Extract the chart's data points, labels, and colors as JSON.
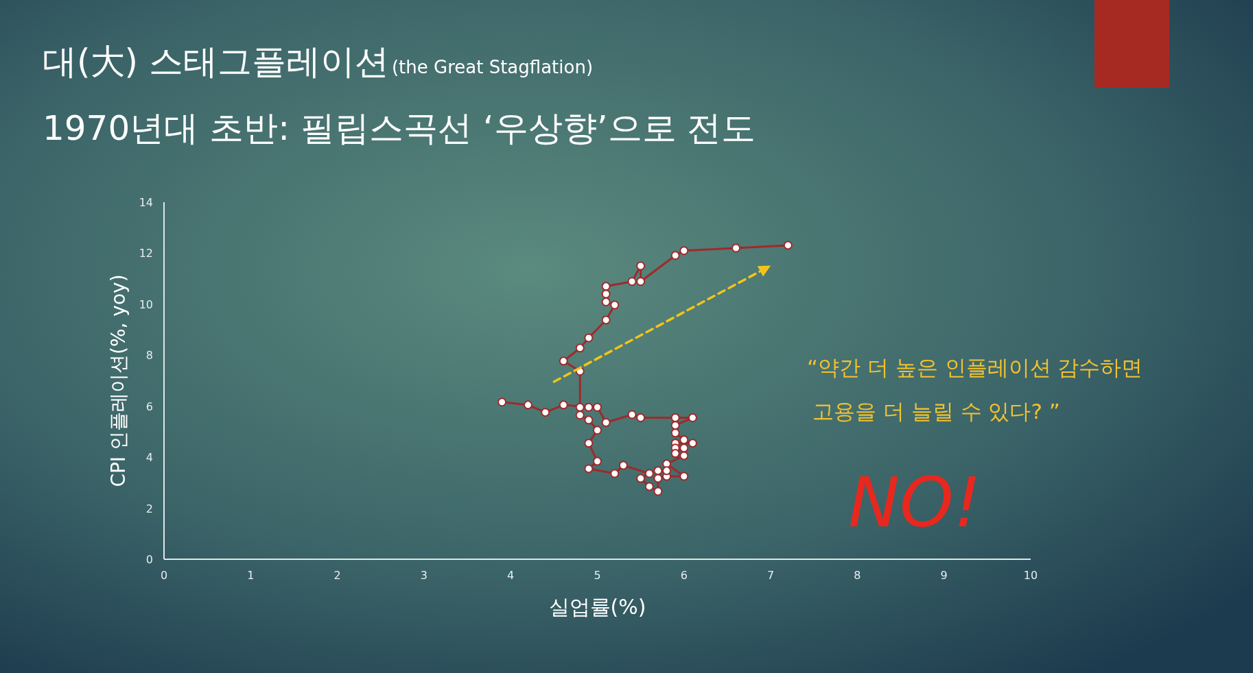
{
  "chart_data": {
    "type": "line",
    "title": "대(大) 스태그플레이션",
    "subtitle": "(the Great Stagflation)",
    "xlabel": "실업률(%)",
    "ylabel": "CPI 인플레이션(%, yoy)",
    "annotations": [
      "1970년대 초반: 필립스곡선 ‘우상향’으로 전도",
      "“약간 더 높은 인플레이션 감수하면\n고용을 더 늘릴 수 있다? ”",
      "NO!"
    ],
    "xlim": [
      0,
      10
    ],
    "xticks": [
      0,
      1,
      2,
      3,
      4,
      5,
      6,
      7,
      8,
      9,
      10
    ],
    "ylim": [
      0,
      14
    ],
    "yticks": [
      0,
      2,
      4,
      6,
      8,
      10,
      12,
      14
    ],
    "grid": false,
    "series": [
      {
        "color": "#9e2a2b",
        "marker": "circle",
        "line_style": "solid",
        "x": [
          3.9,
          4.2,
          4.4,
          4.61,
          4.9,
          5.0,
          5.1,
          5.4,
          5.5,
          5.9,
          6.1,
          5.9,
          5.9,
          6.0,
          6.1,
          5.9,
          5.9,
          6.0,
          5.9,
          6.0,
          5.8,
          6.0,
          5.8,
          5.8,
          5.7,
          5.7,
          5.7,
          5.6,
          5.5,
          5.6,
          5.3,
          5.2,
          4.9,
          5.0,
          4.9,
          5.0,
          4.9,
          4.8,
          4.8,
          4.8,
          4.61,
          4.8,
          4.9,
          5.1,
          5.2,
          5.1,
          5.1,
          5.1,
          5.4,
          5.5,
          5.5,
          5.9,
          6.0,
          6.6,
          7.2
        ],
        "values": [
          6.16,
          6.05,
          5.76,
          6.05,
          5.96,
          5.96,
          5.36,
          5.67,
          5.55,
          5.55,
          5.55,
          5.25,
          4.95,
          4.68,
          4.55,
          4.55,
          4.36,
          4.36,
          4.15,
          4.06,
          3.74,
          3.25,
          3.25,
          3.47,
          3.47,
          3.17,
          2.66,
          2.85,
          3.17,
          3.36,
          3.68,
          3.36,
          3.55,
          3.84,
          4.55,
          5.06,
          5.46,
          5.65,
          5.96,
          7.37,
          7.77,
          8.28,
          8.68,
          9.38,
          9.97,
          10.09,
          10.4,
          10.7,
          10.89,
          11.5,
          10.89,
          11.91,
          12.1,
          12.2,
          12.31
        ]
      },
      {
        "type": "line",
        "color": "#f2c419",
        "marker": "none",
        "line_style": "dashed",
        "x": [
          4.5,
          6.94
        ],
        "values": [
          6.96,
          11.4
        ]
      }
    ]
  }
}
